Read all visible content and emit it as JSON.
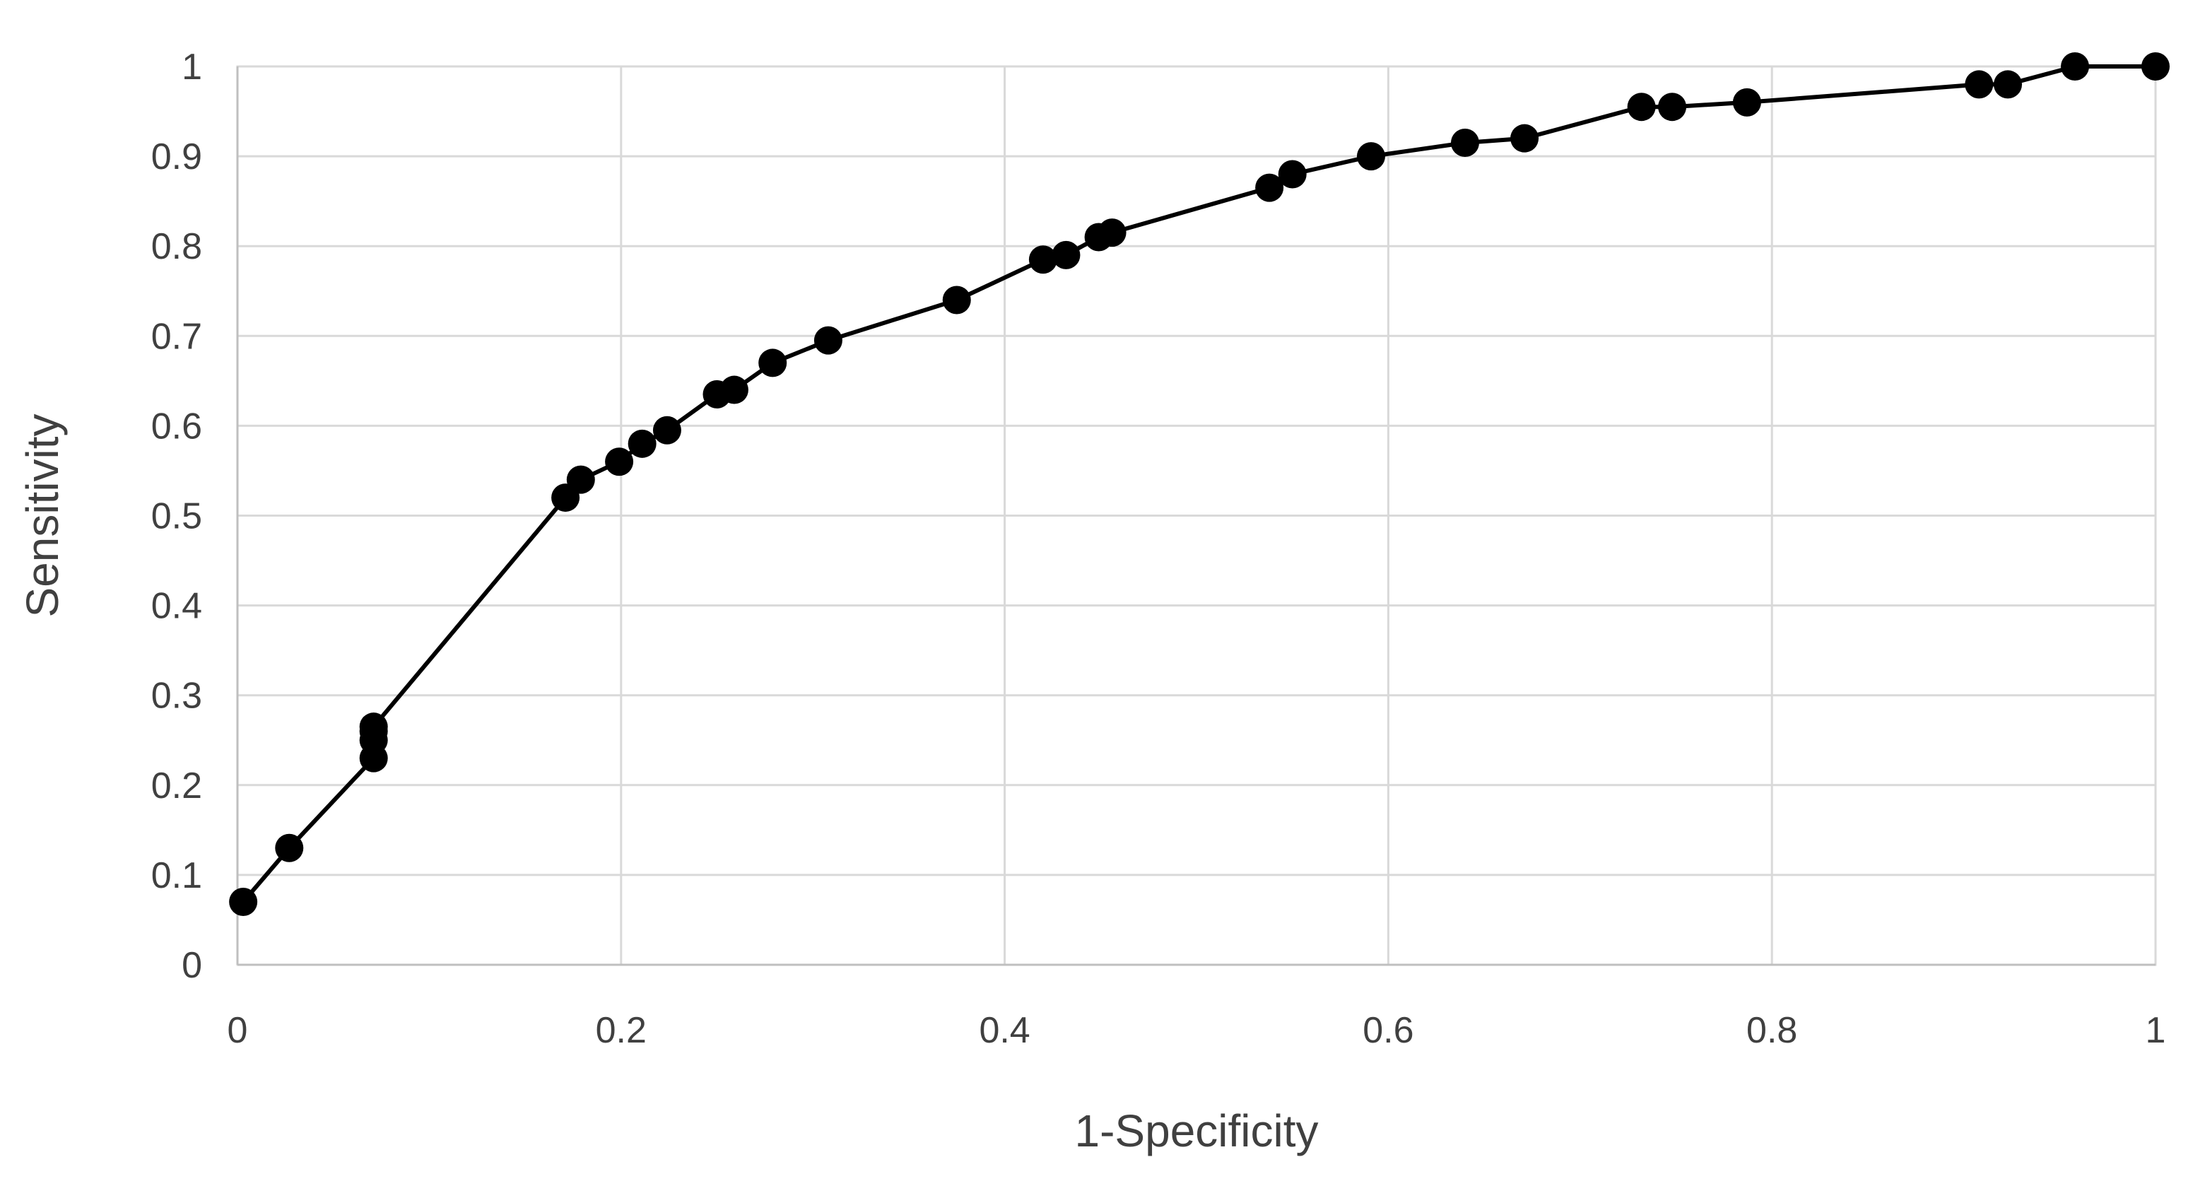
{
  "chart_data": {
    "type": "line",
    "title": "",
    "xlabel": "1-Specificity",
    "ylabel": "Sensitivity",
    "xlim": [
      0,
      1
    ],
    "ylim": [
      0,
      1
    ],
    "x_ticks": [
      "0",
      "0.2",
      "0.4",
      "0.6",
      "0.8",
      "1"
    ],
    "y_ticks": [
      "0",
      "0.1",
      "0.2",
      "0.3",
      "0.4",
      "0.5",
      "0.6",
      "0.7",
      "0.8",
      "0.9",
      "1"
    ],
    "grid": true,
    "legend": "none",
    "series": [
      {
        "color": "#000000",
        "marker": "circle",
        "x": [
          0.003,
          0.027,
          0.071,
          0.071,
          0.071,
          0.071,
          0.171,
          0.179,
          0.199,
          0.211,
          0.224,
          0.25,
          0.259,
          0.279,
          0.308,
          0.375,
          0.42,
          0.432,
          0.449,
          0.456,
          0.538,
          0.55,
          0.591,
          0.64,
          0.671,
          0.732,
          0.748,
          0.787,
          0.908,
          0.923,
          0.958,
          1.0
        ],
        "y": [
          0.07,
          0.13,
          0.23,
          0.25,
          0.26,
          0.265,
          0.52,
          0.54,
          0.56,
          0.58,
          0.595,
          0.635,
          0.64,
          0.67,
          0.695,
          0.74,
          0.785,
          0.79,
          0.81,
          0.815,
          0.865,
          0.88,
          0.9,
          0.915,
          0.92,
          0.955,
          0.955,
          0.96,
          0.98,
          0.98,
          1.0,
          1.0
        ]
      }
    ]
  }
}
